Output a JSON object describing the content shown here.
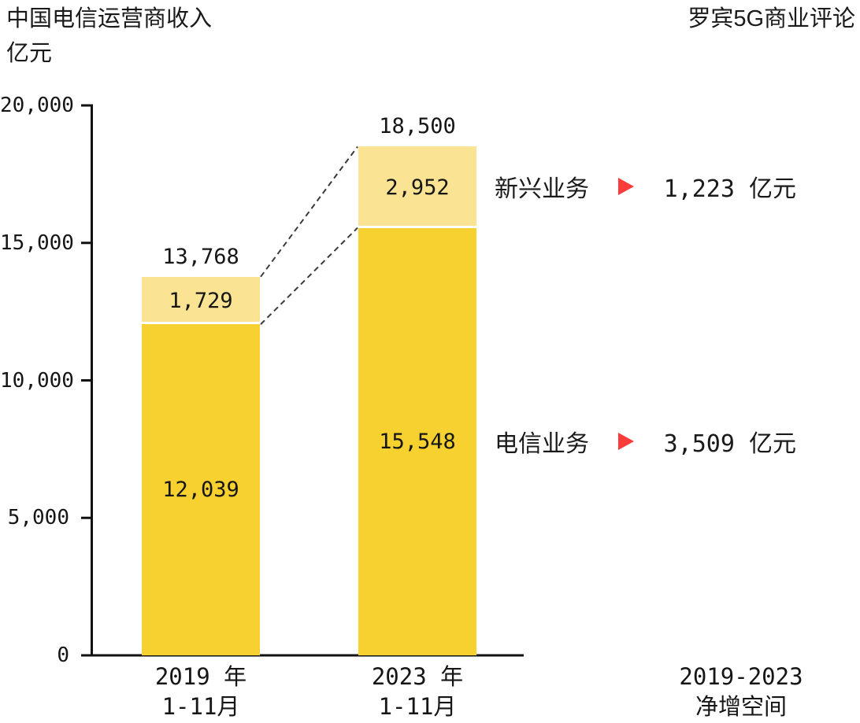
{
  "header": {
    "title": "中国电信运营商收入",
    "unit": "亿元",
    "source": "罗宾5G商业评论"
  },
  "chart_data": {
    "type": "bar",
    "stacked": true,
    "categories": [
      "2019 年|1-11月",
      "2023 年|1-11月"
    ],
    "series": [
      {
        "name": "电信业务",
        "values": [
          12039,
          15548
        ],
        "value_labels": [
          "12,039",
          "15,548"
        ],
        "color": "#F7D12F"
      },
      {
        "name": "新兴业务",
        "values": [
          1729,
          2952
        ],
        "value_labels": [
          "1,729",
          "2,952"
        ],
        "color": "#FAE392"
      }
    ],
    "totals": [
      13768,
      18500
    ],
    "total_labels": [
      "13,768",
      "18,500"
    ],
    "ylim": [
      0,
      20000
    ],
    "yticks": [
      0,
      5000,
      10000,
      15000,
      20000
    ],
    "ytick_labels": [
      "0",
      "5,000",
      "10,000",
      "15,000",
      "20,000"
    ],
    "ylabel": "亿元",
    "title": "中国电信运营商收入",
    "grid": false,
    "legend_position": "none"
  },
  "annotations": [
    {
      "label": "新兴业务",
      "marker": "right-triangle-icon",
      "marker_color": "#FC3B3B",
      "value": "1,223 亿元"
    },
    {
      "label": "电信业务",
      "marker": "right-triangle-icon",
      "marker_color": "#FC3B3B",
      "value": "3,509 亿元"
    }
  ],
  "footer": {
    "period": "2019-2023",
    "caption": "净增空间"
  },
  "colors": {
    "telecom_segment": "#F7D12F",
    "emerging_segment": "#FAE392",
    "marker_red": "#FC3B3B",
    "axis": "#111111",
    "dashed_line": "#3a3a3a",
    "text": "#1d1d1d",
    "background": "#FFFFFF"
  }
}
